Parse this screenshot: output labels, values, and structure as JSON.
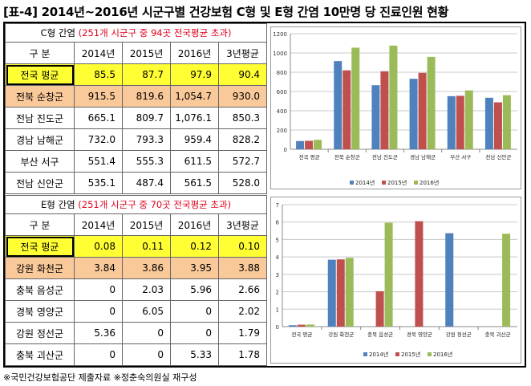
{
  "title": "[표-4] 2014년~2016년 시군구별 건강보험 C형 및 E형 간염 10만명 당 진료인원 현황",
  "footer": "※국민건강보험공단 제출자료 ※정춘숙의원실 재구성",
  "colors": {
    "s2014": "#4f81bd",
    "s2015": "#c0504d",
    "s2016": "#9bbb59",
    "avg_row": "#ffff33",
    "top_row": "#f9c99a",
    "note_red": "#e0001b"
  },
  "tableC": {
    "caption_main": "C형 간염 ",
    "caption_note": "(251개 시군구 중 94곳 전국평균 초과)",
    "header": [
      "구  분",
      "2014년",
      "2015년",
      "2016년",
      "3년평균"
    ],
    "rows": [
      {
        "name": "전국 평균",
        "values": [
          "85.5",
          "87.7",
          "97.9",
          "90.4"
        ]
      },
      {
        "name": "전북 순창군",
        "values": [
          "915.5",
          "819.6",
          "1,054.7",
          "930.0"
        ]
      },
      {
        "name": "전남 진도군",
        "values": [
          "665.1",
          "809.7",
          "1,076.1",
          "850.3"
        ]
      },
      {
        "name": "경남 남해군",
        "values": [
          "732.0",
          "793.3",
          "959.4",
          "828.2"
        ]
      },
      {
        "name": "부산 서구",
        "values": [
          "551.4",
          "555.3",
          "611.5",
          "572.7"
        ]
      },
      {
        "name": "전남 신안군",
        "values": [
          "535.1",
          "487.4",
          "561.5",
          "528.0"
        ]
      }
    ]
  },
  "tableE": {
    "caption_main": "E형 간염 ",
    "caption_note": "(251개 시군구 중 70곳 전국평균 초과)",
    "header": [
      "구  분",
      "2014년",
      "2015년",
      "2016년",
      "3년평균"
    ],
    "rows": [
      {
        "name": "전국 평균",
        "values": [
          "0.08",
          "0.11",
          "0.12",
          "0.10"
        ]
      },
      {
        "name": "강원 화천군",
        "values": [
          "3.84",
          "3.86",
          "3.95",
          "3.88"
        ]
      },
      {
        "name": "충북 음성군",
        "values": [
          "0",
          "2.03",
          "5.96",
          "2.66"
        ]
      },
      {
        "name": "경북 영양군",
        "values": [
          "0",
          "6.05",
          "0",
          "2.02"
        ]
      },
      {
        "name": "강원 정선군",
        "values": [
          "5.36",
          "0",
          "0",
          "1.79"
        ]
      },
      {
        "name": "충북 괴산군",
        "values": [
          "0",
          "0",
          "5.33",
          "1.78"
        ]
      }
    ]
  },
  "chart_data": [
    {
      "type": "bar",
      "categories": [
        "전국 평균",
        "전북 순창군",
        "전남 진도군",
        "경남 남해군",
        "부산 서구",
        "전남 신안군"
      ],
      "series": [
        {
          "name": "2014년",
          "values": [
            85.5,
            915.5,
            665.1,
            732.0,
            551.4,
            535.1
          ]
        },
        {
          "name": "2015년",
          "values": [
            87.7,
            819.6,
            809.7,
            793.3,
            555.3,
            487.4
          ]
        },
        {
          "name": "2016년",
          "values": [
            97.9,
            1054.7,
            1076.1,
            959.4,
            611.5,
            561.5
          ]
        }
      ],
      "ylim": [
        0,
        1200
      ],
      "yticks": [
        "0",
        "200",
        "400",
        "600",
        "800",
        "1000",
        "1200"
      ],
      "grid": true,
      "legend": "bottom"
    },
    {
      "type": "bar",
      "categories": [
        "전국 평균",
        "강원 화천군",
        "충북 음성군",
        "경북 영양군",
        "강원 정선군",
        "충북 괴산군"
      ],
      "series": [
        {
          "name": "2014년",
          "values": [
            0.08,
            3.84,
            0,
            0,
            5.36,
            0
          ]
        },
        {
          "name": "2015년",
          "values": [
            0.11,
            3.86,
            2.03,
            6.05,
            0,
            0
          ]
        },
        {
          "name": "2016년",
          "values": [
            0.12,
            3.95,
            5.96,
            0,
            0,
            5.33
          ]
        }
      ],
      "ylim": [
        0,
        7
      ],
      "yticks": [
        "0",
        "1",
        "2",
        "3",
        "4",
        "5",
        "6",
        "7"
      ],
      "grid": true,
      "legend": "bottom"
    }
  ]
}
